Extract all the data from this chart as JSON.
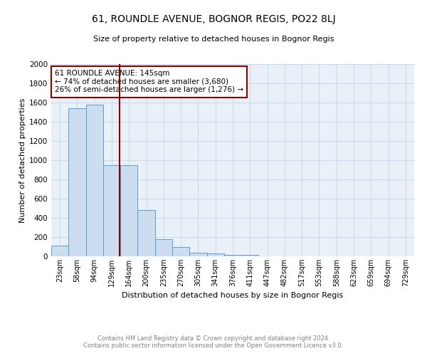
{
  "title": "61, ROUNDLE AVENUE, BOGNOR REGIS, PO22 8LJ",
  "subtitle": "Size of property relative to detached houses in Bognor Regis",
  "xlabel": "Distribution of detached houses by size in Bognor Regis",
  "ylabel": "Number of detached properties",
  "categories": [
    "23sqm",
    "58sqm",
    "94sqm",
    "129sqm",
    "164sqm",
    "200sqm",
    "235sqm",
    "270sqm",
    "305sqm",
    "341sqm",
    "376sqm",
    "411sqm",
    "447sqm",
    "482sqm",
    "517sqm",
    "553sqm",
    "588sqm",
    "623sqm",
    "659sqm",
    "694sqm",
    "729sqm"
  ],
  "values": [
    110,
    1540,
    1575,
    950,
    950,
    480,
    180,
    100,
    40,
    28,
    18,
    18,
    0,
    0,
    0,
    0,
    0,
    0,
    0,
    0,
    0
  ],
  "bar_color": "#ccddf0",
  "bar_edge_color": "#5b9bd5",
  "grid_color": "#c8d9ed",
  "vline_color": "#8b0000",
  "annotation_text": "61 ROUNDLE AVENUE: 145sqm\n← 74% of detached houses are smaller (3,680)\n26% of semi-detached houses are larger (1,276) →",
  "annotation_box_edge": "#8b0000",
  "footer_line1": "Contains HM Land Registry data © Crown copyright and database right 2024.",
  "footer_line2": "Contains public sector information licensed under the Open Government Licence v3.0.",
  "ylim": [
    0,
    2000
  ],
  "yticks": [
    0,
    200,
    400,
    600,
    800,
    1000,
    1200,
    1400,
    1600,
    1800,
    2000
  ],
  "bg_color": "#eaf0f8",
  "fig_width": 6.0,
  "fig_height": 5.0,
  "dpi": 100
}
